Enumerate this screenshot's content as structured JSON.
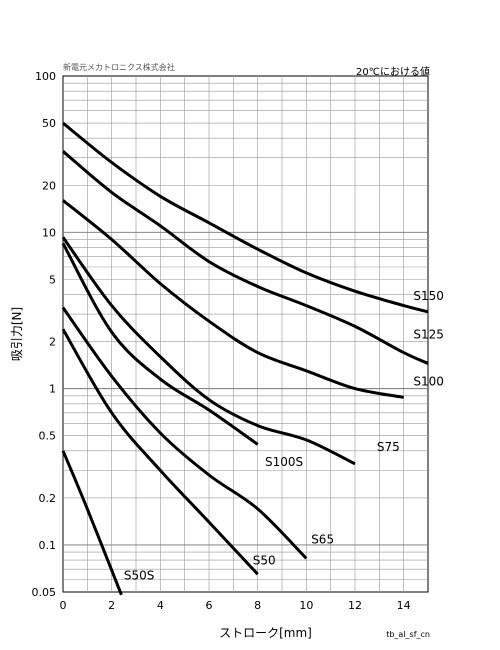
{
  "header": {
    "company": "新電元メカトロニクス株式会社",
    "condition": "20℃における値"
  },
  "footer": {
    "code": "tb_al_sf_cn"
  },
  "chart_data": {
    "type": "line",
    "xlabel": "ストローク[mm]",
    "ylabel": "吸引力[N]",
    "xlim": [
      0,
      15
    ],
    "ylim": [
      0.05,
      100
    ],
    "yscale": "log",
    "xticks": [
      0,
      2,
      4,
      6,
      8,
      10,
      12,
      14
    ],
    "yticks": [
      0.05,
      0.1,
      0.2,
      0.5,
      1,
      2,
      5,
      10,
      20,
      50,
      100
    ],
    "ytick_labels": [
      "0.05",
      "0.1",
      "0.2",
      "0.5",
      "1",
      "2",
      "5",
      "10",
      "20",
      "50",
      "100"
    ],
    "grid": true,
    "series": [
      {
        "name": "S150",
        "points": [
          [
            0,
            50
          ],
          [
            2,
            28
          ],
          [
            4,
            17
          ],
          [
            6,
            11.5
          ],
          [
            8,
            7.8
          ],
          [
            10,
            5.5
          ],
          [
            12,
            4.2
          ],
          [
            14,
            3.4
          ],
          [
            15,
            3.1
          ]
        ]
      },
      {
        "name": "S125",
        "points": [
          [
            0,
            33
          ],
          [
            2,
            18
          ],
          [
            4,
            11
          ],
          [
            6,
            6.5
          ],
          [
            8,
            4.5
          ],
          [
            10,
            3.4
          ],
          [
            12,
            2.5
          ],
          [
            14,
            1.7
          ],
          [
            15,
            1.45
          ]
        ]
      },
      {
        "name": "S100",
        "points": [
          [
            0,
            16
          ],
          [
            2,
            9
          ],
          [
            4,
            4.7
          ],
          [
            6,
            2.7
          ],
          [
            8,
            1.7
          ],
          [
            10,
            1.3
          ],
          [
            12,
            1.0
          ],
          [
            14,
            0.88
          ]
        ]
      },
      {
        "name": "S75",
        "points": [
          [
            0,
            9.3
          ],
          [
            2,
            3.4
          ],
          [
            4,
            1.6
          ],
          [
            6,
            0.85
          ],
          [
            8,
            0.58
          ],
          [
            10,
            0.47
          ],
          [
            12,
            0.33
          ]
        ]
      },
      {
        "name": "S100S",
        "points": [
          [
            0,
            8.5
          ],
          [
            2,
            2.3
          ],
          [
            4,
            1.15
          ],
          [
            6,
            0.73
          ],
          [
            8,
            0.44
          ]
        ]
      },
      {
        "name": "S65",
        "points": [
          [
            0,
            3.3
          ],
          [
            2,
            1.2
          ],
          [
            4,
            0.52
          ],
          [
            6,
            0.28
          ],
          [
            8,
            0.17
          ],
          [
            10,
            0.082
          ]
        ]
      },
      {
        "name": "S50",
        "points": [
          [
            0,
            2.4
          ],
          [
            2,
            0.7
          ],
          [
            4,
            0.3
          ],
          [
            6,
            0.14
          ],
          [
            8,
            0.065
          ]
        ]
      },
      {
        "name": "S50S",
        "points": [
          [
            0,
            0.4
          ],
          [
            1,
            0.17
          ],
          [
            2.4,
            0.048
          ]
        ]
      }
    ],
    "label_positions": {
      "S150": [
        14.4,
        3.7
      ],
      "S125": [
        14.4,
        2.1
      ],
      "S100": [
        14.4,
        1.05
      ],
      "S75": [
        12.9,
        0.4
      ],
      "S100S": [
        8.3,
        0.32
      ],
      "S65": [
        10.2,
        0.102
      ],
      "S50": [
        7.8,
        0.075
      ],
      "S50S": [
        2.5,
        0.06
      ]
    }
  }
}
